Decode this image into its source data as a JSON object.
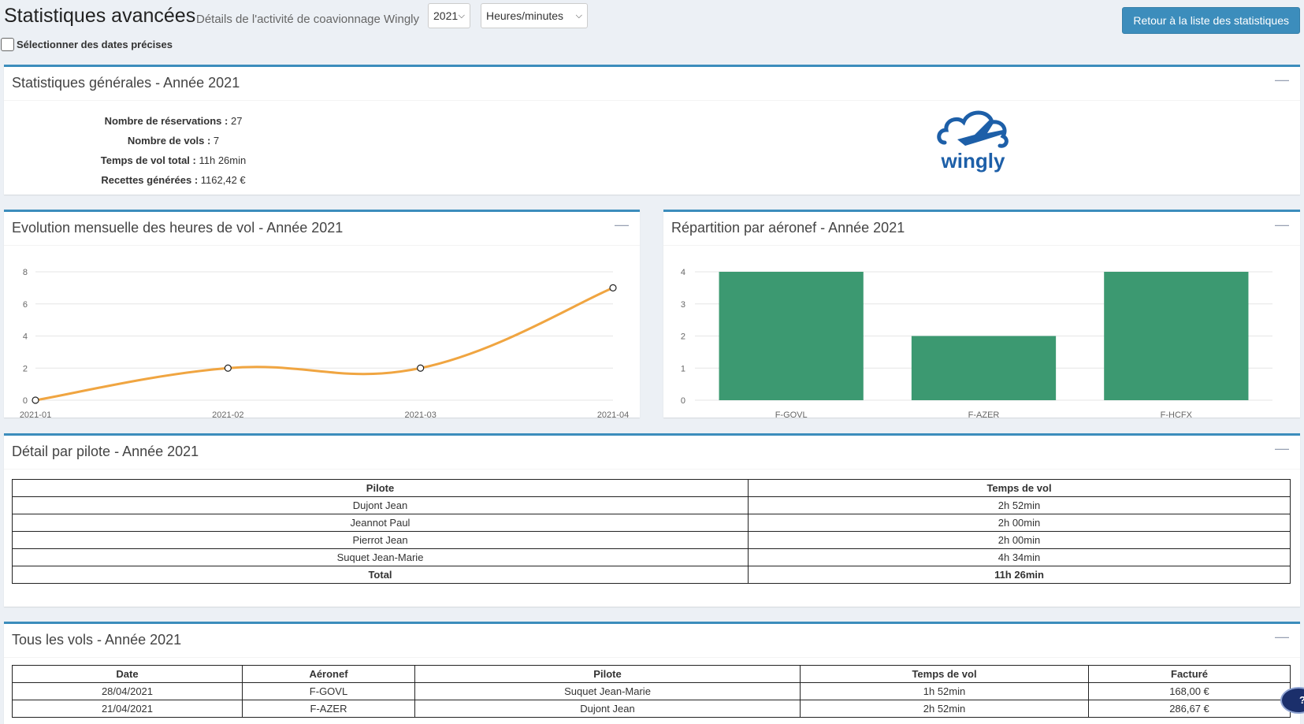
{
  "header": {
    "title": "Statistiques avancées",
    "subtitle": "Détails de l'activité de coavionnage Wingly",
    "year_select": "2021",
    "unit_select": "Heures/minutes",
    "back_button": "Retour à la liste des statistiques",
    "dates_checkbox_label": "Sélectionner des dates précises"
  },
  "general": {
    "title": "Statistiques générales - Année 2021",
    "collapse_icon": "minus-icon",
    "stats": [
      {
        "label": "Nombre de réservations :",
        "value": "27"
      },
      {
        "label": "Nombre de vols :",
        "value": "7"
      },
      {
        "label": "Temps de vol total :",
        "value": "11h 26min"
      },
      {
        "label": "Recettes générées :",
        "value": "1162,42 €"
      }
    ],
    "logo_text": "wingly",
    "logo_color": "#1d5fa8"
  },
  "monthly": {
    "title": "Evolution mensuelle des heures de vol - Année 2021"
  },
  "aircraft": {
    "title": "Répartition par aéronef - Année 2021"
  },
  "chart_data": [
    {
      "type": "line",
      "x": [
        "2021-01",
        "2021-02",
        "2021-03",
        "2021-04"
      ],
      "series": [
        {
          "values": [
            0,
            2,
            2,
            7
          ],
          "color": "#f0a541"
        }
      ],
      "yticks": [
        0,
        2,
        4,
        6,
        8
      ],
      "ylim": [
        0,
        8
      ],
      "grid": true
    },
    {
      "type": "bar",
      "categories": [
        "F-GOVL",
        "F-AZER",
        "F-HCFX"
      ],
      "values": [
        4,
        2,
        4
      ],
      "color": "#3c9971",
      "yticks": [
        0,
        1,
        2,
        3,
        4
      ],
      "ylim": [
        0,
        4
      ],
      "grid": true
    }
  ],
  "pilots": {
    "title": "Détail par pilote - Année 2021",
    "columns": [
      "Pilote",
      "Temps de vol"
    ],
    "rows": [
      [
        "Dujont Jean",
        "2h 52min"
      ],
      [
        "Jeannot Paul",
        "2h 00min"
      ],
      [
        "Pierrot Jean",
        "2h 00min"
      ],
      [
        "Suquet Jean-Marie",
        "4h 34min"
      ]
    ],
    "total": [
      "Total",
      "11h 26min"
    ]
  },
  "flights": {
    "title": "Tous les vols - Année 2021",
    "columns": [
      "Date",
      "Aéronef",
      "Pilote",
      "Temps de vol",
      "Facturé"
    ],
    "rows": [
      [
        "28/04/2021",
        "F-GOVL",
        "Suquet Jean-Marie",
        "1h 52min",
        "168,00 €"
      ],
      [
        "21/04/2021",
        "F-AZER",
        "Dujont Jean",
        "2h 52min",
        "286,67 €"
      ]
    ]
  },
  "help_badge": "?"
}
